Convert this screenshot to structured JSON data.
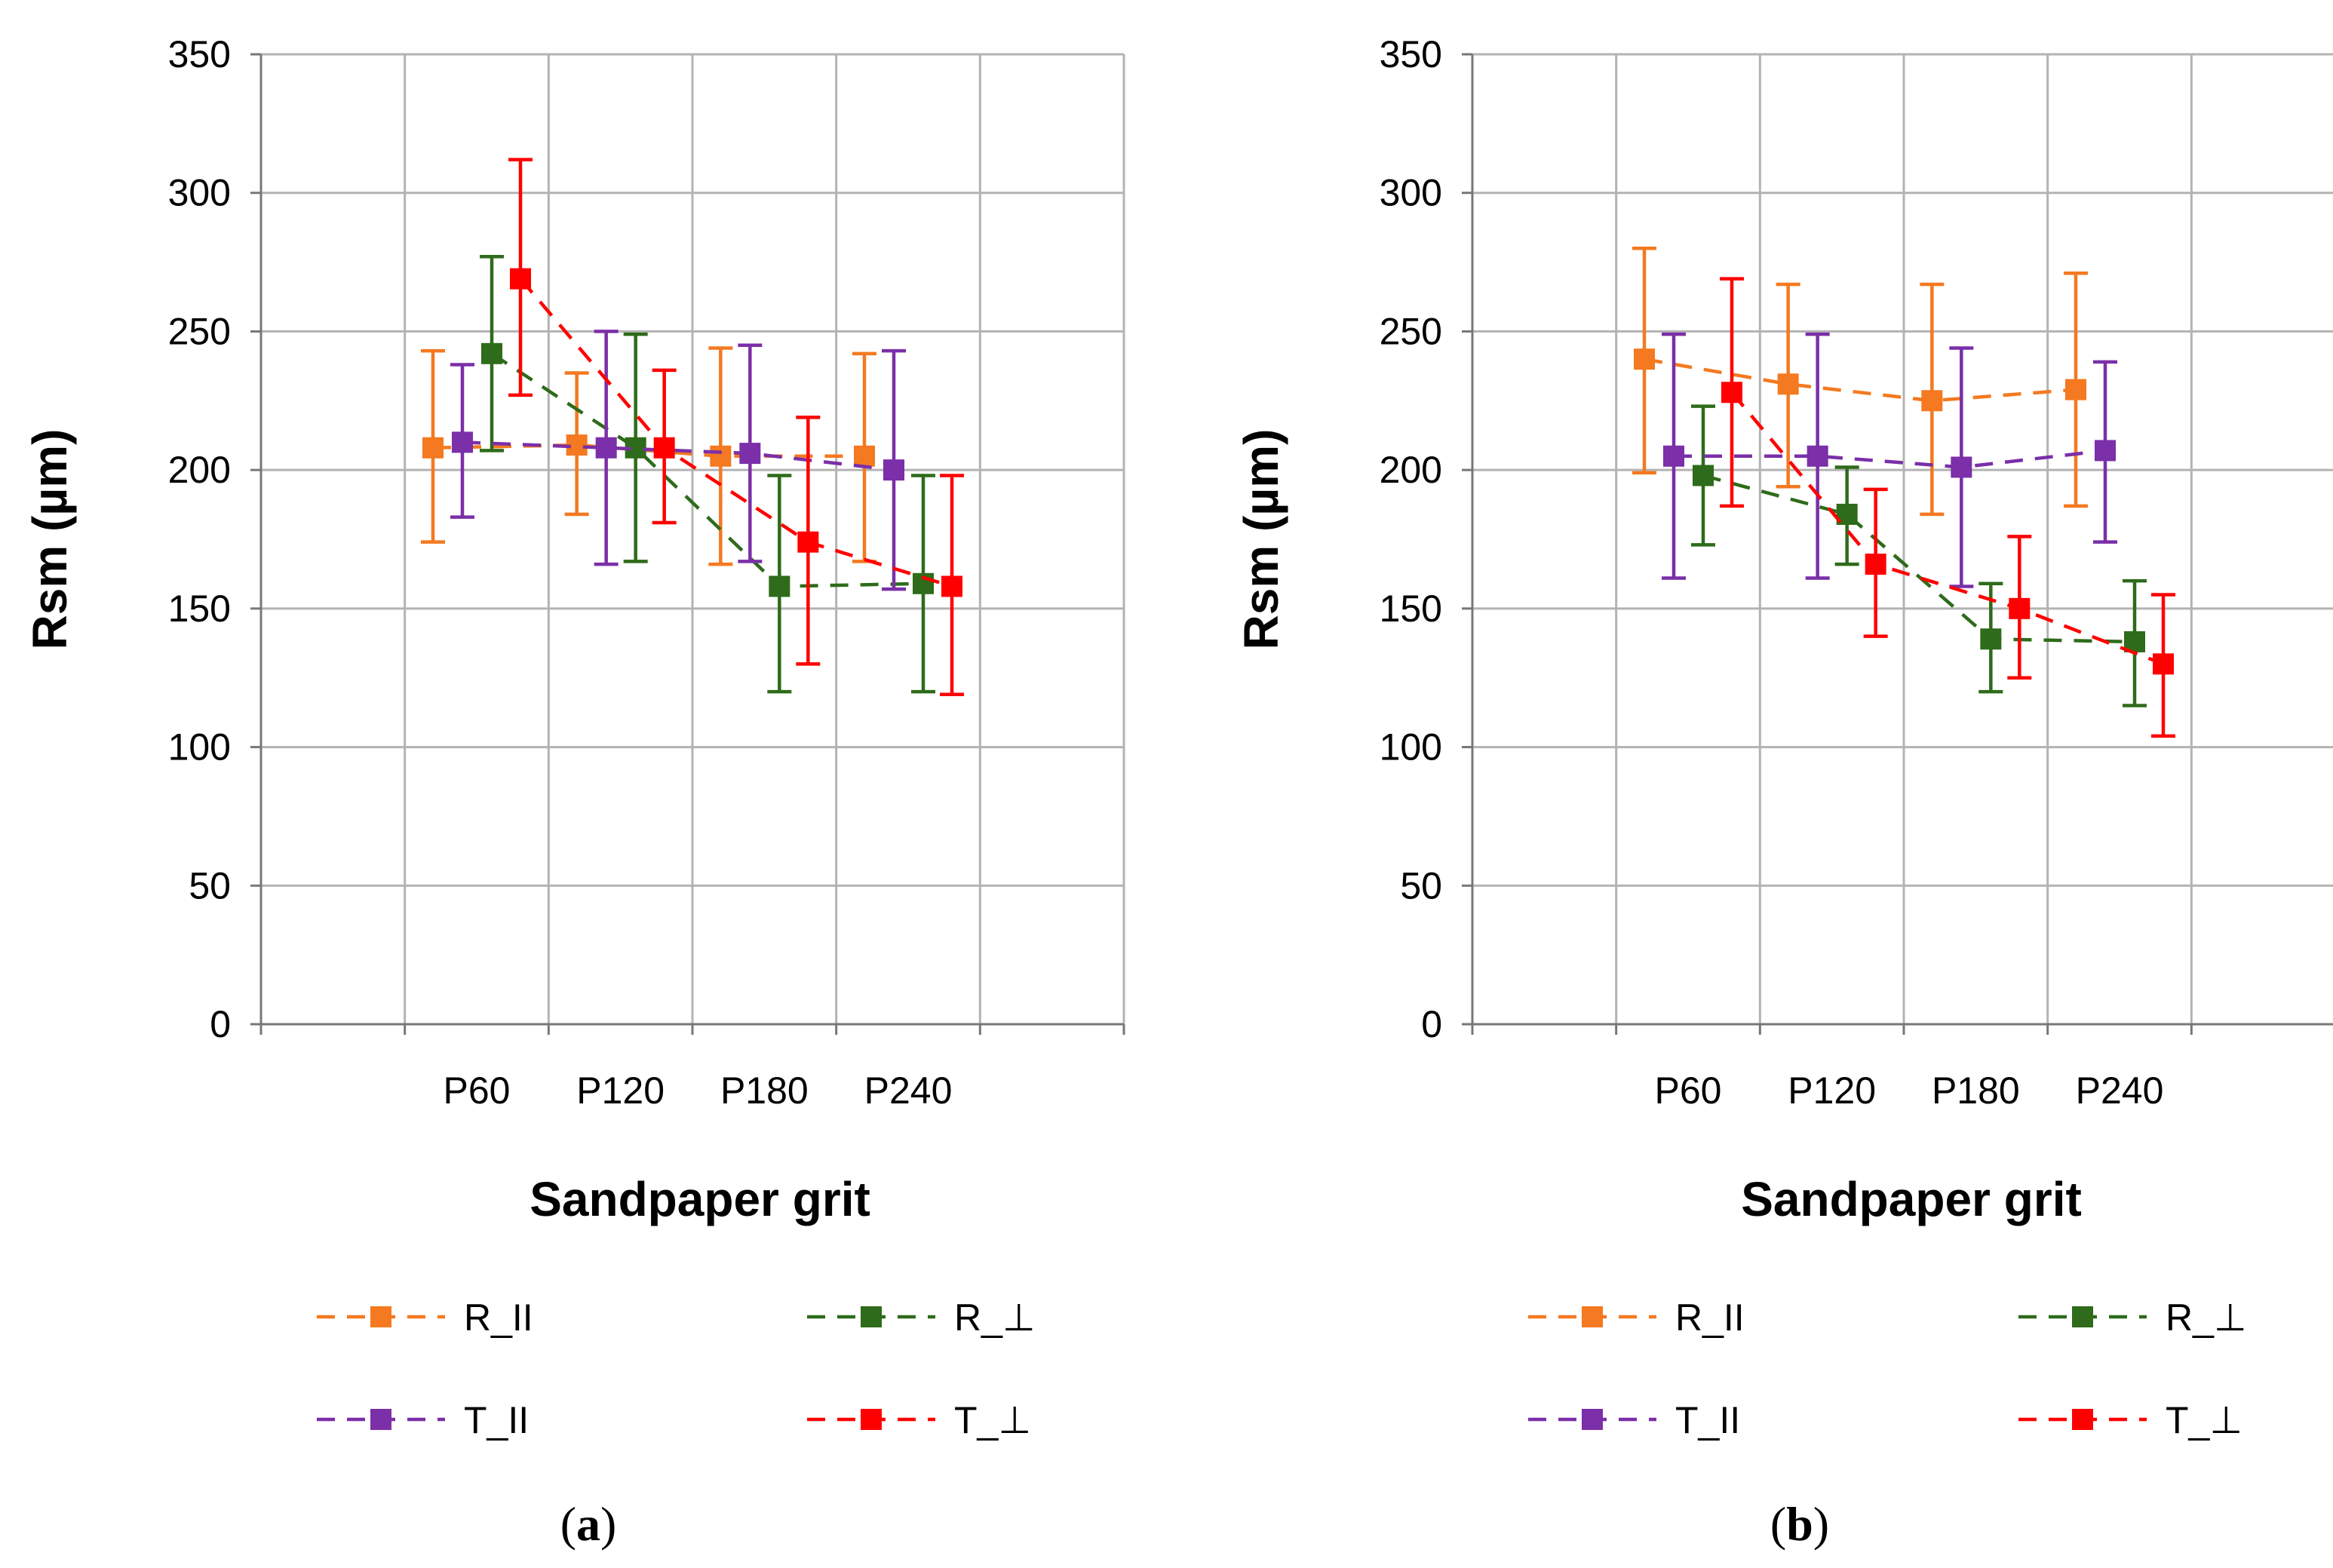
{
  "figure": {
    "panels": [
      {
        "caption_open": "(",
        "caption_letter": "a",
        "caption_close": ")"
      },
      {
        "caption_open": "(",
        "caption_letter": "b",
        "caption_close": ")"
      }
    ]
  },
  "chart_data": [
    {
      "type": "line",
      "panel": "(a)",
      "title": "",
      "xlabel": "Sandpaper grit",
      "ylabel": "Rsm (µm)",
      "ylim": [
        0,
        350
      ],
      "yticks": [
        0,
        50,
        100,
        150,
        200,
        250,
        300,
        350
      ],
      "grid": true,
      "legend_position": "bottom",
      "categories": [
        "P60",
        "P120",
        "P180",
        "P240"
      ],
      "series": [
        {
          "name": "R_II",
          "color": "#F47920",
          "values": [
            208,
            209,
            205,
            205
          ],
          "err_low": [
            174,
            184,
            166,
            167
          ],
          "err_high": [
            243,
            235,
            244,
            242
          ]
        },
        {
          "name": "R_⊥",
          "color": "#2E6B1A",
          "values": [
            242,
            208,
            158,
            159
          ],
          "err_low": [
            207,
            167,
            120,
            120
          ],
          "err_high": [
            277,
            249,
            198,
            198
          ]
        },
        {
          "name": "T_II",
          "color": "#7B2FA8",
          "values": [
            210,
            208,
            206,
            200
          ],
          "err_low": [
            183,
            166,
            167,
            157
          ],
          "err_high": [
            238,
            250,
            245,
            243
          ]
        },
        {
          "name": "T_⊥",
          "color": "#FF0000",
          "values": [
            269,
            208,
            174,
            158
          ],
          "err_low": [
            227,
            181,
            130,
            119
          ],
          "err_high": [
            312,
            236,
            219,
            198
          ]
        }
      ]
    },
    {
      "type": "line",
      "panel": "(b)",
      "title": "",
      "xlabel": "Sandpaper grit",
      "ylabel": "Rsm (µm)",
      "ylim": [
        0,
        350
      ],
      "yticks": [
        0,
        50,
        100,
        150,
        200,
        250,
        300,
        350
      ],
      "grid": true,
      "legend_position": "bottom",
      "categories": [
        "P60",
        "P120",
        "P180",
        "P240"
      ],
      "series": [
        {
          "name": "R_II",
          "color": "#F47920",
          "values": [
            240,
            231,
            225,
            229
          ],
          "err_low": [
            199,
            194,
            184,
            187
          ],
          "err_high": [
            280,
            267,
            267,
            271
          ]
        },
        {
          "name": "R_⊥",
          "color": "#2E6B1A",
          "values": [
            198,
            184,
            139,
            138
          ],
          "err_low": [
            173,
            166,
            120,
            115
          ],
          "err_high": [
            223,
            201,
            159,
            160
          ]
        },
        {
          "name": "T_II",
          "color": "#7B2FA8",
          "values": [
            205,
            205,
            201,
            207
          ],
          "err_low": [
            161,
            161,
            158,
            174
          ],
          "err_high": [
            249,
            249,
            244,
            239
          ]
        },
        {
          "name": "T_⊥",
          "color": "#FF0000",
          "values": [
            228,
            166,
            150,
            130
          ],
          "err_low": [
            187,
            140,
            125,
            104
          ],
          "err_high": [
            269,
            193,
            176,
            155
          ]
        }
      ]
    }
  ]
}
